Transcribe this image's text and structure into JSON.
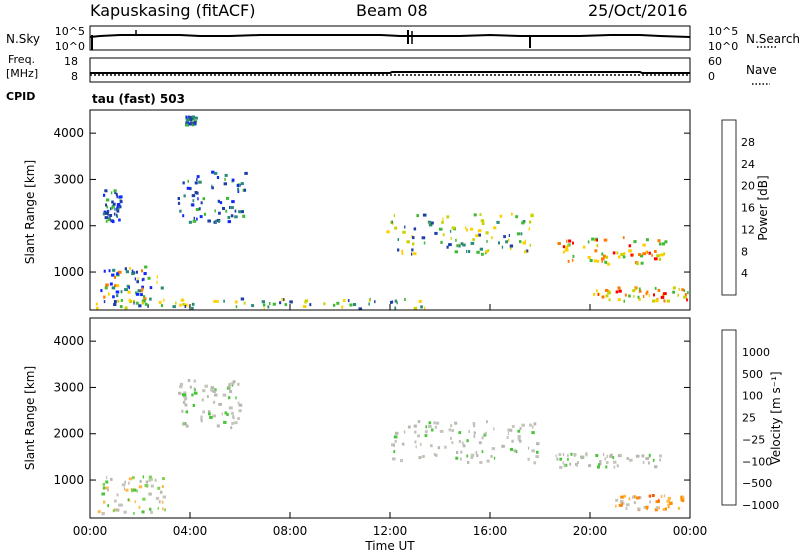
{
  "header": {
    "station": "Kapuskasing (fitACF)",
    "beam": "Beam 08",
    "date": "25/Oct/2016"
  },
  "top_panels": {
    "nsky_label": "N.Sky",
    "nsky_ticks": [
      "10^5",
      "10^0"
    ],
    "nsearch_label": "N.Search",
    "nsearch_ticks": [
      "10^5",
      "10^0"
    ],
    "freq_label_1": "Freq.",
    "freq_label_2": "[MHz]",
    "freq_ticks": [
      "18",
      "8"
    ],
    "nave_label": "Nave",
    "nave_ticks": [
      "60",
      "0"
    ],
    "cpid_label": "CPID",
    "cpid_value": "tau (fast) 503"
  },
  "chart_data": [
    {
      "type": "heatmap",
      "panel": "power",
      "xlabel": "",
      "ylabel": "Slant Range [km]",
      "ylim": [
        180,
        4500
      ],
      "y_ticks": [
        "1000",
        "2000",
        "3000",
        "4000"
      ],
      "colorbar_label": "Power [dB]",
      "colorbar_ticks": [
        "28",
        "24",
        "20",
        "16",
        "12",
        "8",
        "4"
      ],
      "colorbar_colors": [
        "#ff0000",
        "#ff7a00",
        "#ffd000",
        "#c8d200",
        "#3fb833",
        "#2a8a7a",
        "#1f3fa6",
        "#0f27ff"
      ],
      "features": [
        {
          "t0": 0.3,
          "t1": 2.9,
          "r0": 280,
          "r1": 1150,
          "level": "mixed"
        },
        {
          "t0": 0.5,
          "t1": 1.2,
          "r0": 2100,
          "r1": 2800,
          "level": "low"
        },
        {
          "t0": 3.5,
          "t1": 6.2,
          "r0": 2100,
          "r1": 3200,
          "level": "low"
        },
        {
          "t0": 3.8,
          "t1": 4.2,
          "r0": 4200,
          "r1": 4400,
          "level": "low"
        },
        {
          "t0": 11.8,
          "t1": 17.8,
          "r0": 1400,
          "r1": 2300,
          "level": "mid"
        },
        {
          "t0": 18.5,
          "t1": 23.0,
          "r0": 1200,
          "r1": 1800,
          "level": "high"
        },
        {
          "t0": 20.0,
          "t1": 24.0,
          "r0": 400,
          "r1": 700,
          "level": "high"
        },
        {
          "t0": 0.0,
          "t1": 13.5,
          "r0": 230,
          "r1": 450,
          "level": "mid"
        }
      ]
    },
    {
      "type": "heatmap",
      "panel": "velocity",
      "xlabel": "Time UT",
      "ylabel": "Slant Range [km]",
      "ylim": [
        180,
        4500
      ],
      "y_ticks": [
        "1000",
        "2000",
        "3000",
        "4000"
      ],
      "x_ticks": [
        "00:00",
        "04:00",
        "08:00",
        "12:00",
        "16:00",
        "20:00",
        "00:00"
      ],
      "colorbar_label": "Velocity [m s⁻¹]",
      "colorbar_ticks": [
        "1000",
        "500",
        "100",
        "25",
        "−25",
        "−100",
        "−500",
        "−1000"
      ],
      "colorbar_colors": [
        "#1a3fd6",
        "#1f7a3f",
        "#49c43a",
        "#b8b8b0",
        "#ffb84a",
        "#ff8c00",
        "#ff5500",
        "#ff0000"
      ],
      "features": [
        {
          "t0": 0.3,
          "t1": 3.0,
          "r0": 300,
          "r1": 1100,
          "level": "green"
        },
        {
          "t0": 3.5,
          "t1": 6.0,
          "r0": 2100,
          "r1": 3200,
          "level": "gray"
        },
        {
          "t0": 12.0,
          "t1": 18.0,
          "r0": 1400,
          "r1": 2300,
          "level": "gray"
        },
        {
          "t0": 18.5,
          "t1": 23.0,
          "r0": 1300,
          "r1": 1600,
          "level": "gray"
        },
        {
          "t0": 21.0,
          "t1": 23.8,
          "r0": 380,
          "r1": 700,
          "level": "orange"
        }
      ]
    }
  ]
}
